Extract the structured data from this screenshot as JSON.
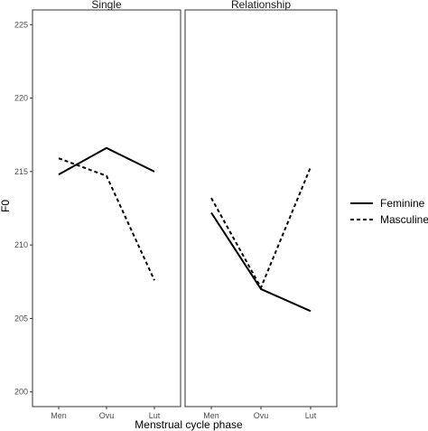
{
  "chart_data": {
    "type": "line",
    "facet_variable": "relationship status",
    "panels": [
      {
        "title": "Single",
        "series": [
          {
            "name": "Feminine",
            "values": [
              214.8,
              216.6,
              215.0
            ]
          },
          {
            "name": "Masculine",
            "values": [
              215.9,
              214.7,
              207.6
            ]
          }
        ]
      },
      {
        "title": "Relationship",
        "series": [
          {
            "name": "Feminine",
            "values": [
              212.2,
              207.0,
              205.5
            ]
          },
          {
            "name": "Masculine",
            "values": [
              213.2,
              207.1,
              215.3
            ]
          }
        ]
      }
    ],
    "categories": [
      "Men",
      "Ovu",
      "Lut"
    ],
    "xlabel": "Menstrual cycle phase",
    "ylabel": "F0",
    "ylim": [
      199,
      226
    ],
    "yticks": [
      200,
      205,
      210,
      215,
      220,
      225
    ],
    "grid": false,
    "legend": {
      "placement": "right",
      "entries": [
        {
          "label": "Feminine",
          "linetype": "solid"
        },
        {
          "label": "Masculine",
          "linetype": "dashed"
        }
      ]
    },
    "colors": {
      "line": "#000000",
      "panel_border": "#333333",
      "background": "#ffffff"
    }
  }
}
